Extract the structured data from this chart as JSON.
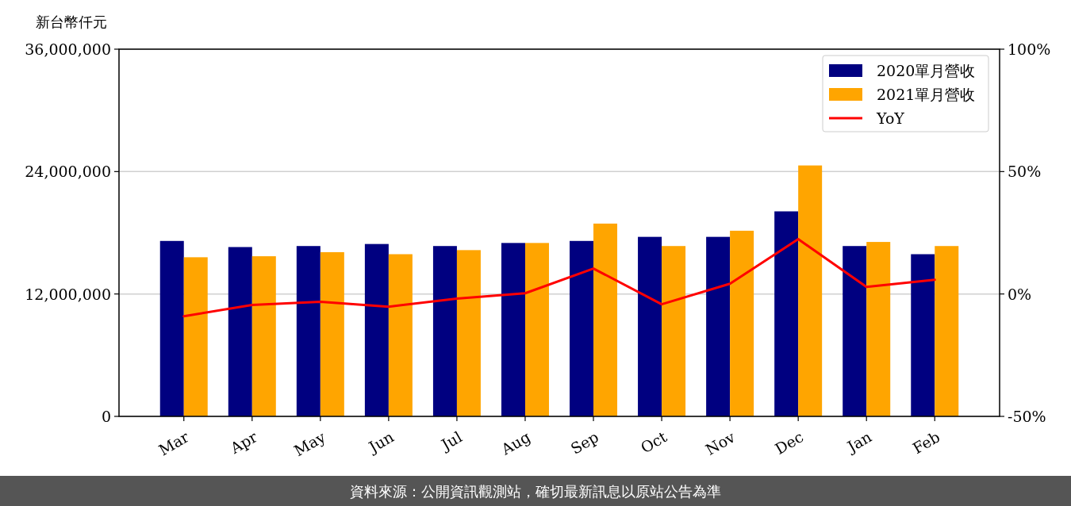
{
  "chart_data": {
    "type": "bar",
    "ylabel": "新台幣仟元",
    "categories": [
      "Mar",
      "Apr",
      "May",
      "Jun",
      "Jul",
      "Aug",
      "Sep",
      "Oct",
      "Nov",
      "Dec",
      "Jan",
      "Feb"
    ],
    "series": [
      {
        "name": "2020單月營收",
        "color": "#000080",
        "values": [
          17200000,
          16600000,
          16700000,
          16900000,
          16700000,
          17000000,
          17200000,
          17600000,
          17600000,
          20100000,
          16700000,
          15900000
        ]
      },
      {
        "name": "2021單月營收",
        "color": "#ffa500",
        "values": [
          15600000,
          15700000,
          16100000,
          15900000,
          16300000,
          17000000,
          18900000,
          16700000,
          18200000,
          24600000,
          17100000,
          16700000
        ]
      },
      {
        "name": "YoY",
        "type": "line",
        "axis": "y2",
        "color": "#ff0000",
        "values": [
          -9.1,
          -4.5,
          -3.2,
          -5.2,
          -1.9,
          0.3,
          10.4,
          -4.2,
          4.2,
          22.4,
          2.9,
          5.8
        ]
      }
    ],
    "ylim": [
      0,
      36000000
    ],
    "yticks": [
      {
        "value": 0,
        "label": "0"
      },
      {
        "value": 12000000,
        "label": "12,000,000"
      },
      {
        "value": 24000000,
        "label": "24,000,000"
      },
      {
        "value": 36000000,
        "label": "36,000,000"
      }
    ],
    "y2lim": [
      -50,
      100
    ],
    "y2ticks": [
      {
        "value": -50,
        "label": "-50%"
      },
      {
        "value": 0,
        "label": "0%"
      },
      {
        "value": 50,
        "label": "50%"
      },
      {
        "value": 100,
        "label": "100%"
      }
    ],
    "grid": "y",
    "legend": "top right",
    "annotations": [
      "資料來源：公開資訊觀測站，確切最新訊息以原站公告為準"
    ]
  }
}
